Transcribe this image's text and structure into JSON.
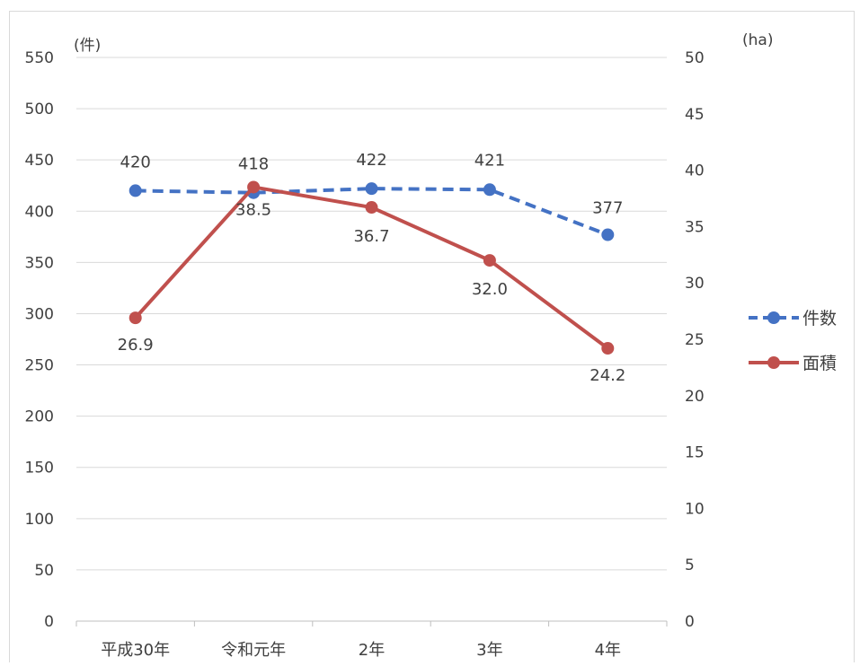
{
  "chart_data": {
    "type": "line",
    "categories": [
      "平成30年",
      "令和元年",
      "2年",
      "3年",
      "4年"
    ],
    "series": [
      {
        "name": "件数",
        "axis": "left",
        "values": [
          420,
          418,
          422,
          421,
          377
        ],
        "labels": [
          "420",
          "418",
          "422",
          "421",
          "377"
        ],
        "color": "#4472C4",
        "style": "dashed"
      },
      {
        "name": "面積",
        "axis": "right",
        "values": [
          26.9,
          38.5,
          36.7,
          32.0,
          24.2
        ],
        "labels": [
          "26.9",
          "38.5",
          "36.7",
          "32.0",
          "24.2"
        ],
        "color": "#C0504D",
        "style": "solid"
      }
    ],
    "y_left": {
      "label": "(件)",
      "min": 0,
      "max": 550,
      "step": 50
    },
    "y_right": {
      "label": "(ha)",
      "min": 0,
      "max": 50,
      "step": 5
    },
    "grid": true,
    "legend_position": "right"
  }
}
